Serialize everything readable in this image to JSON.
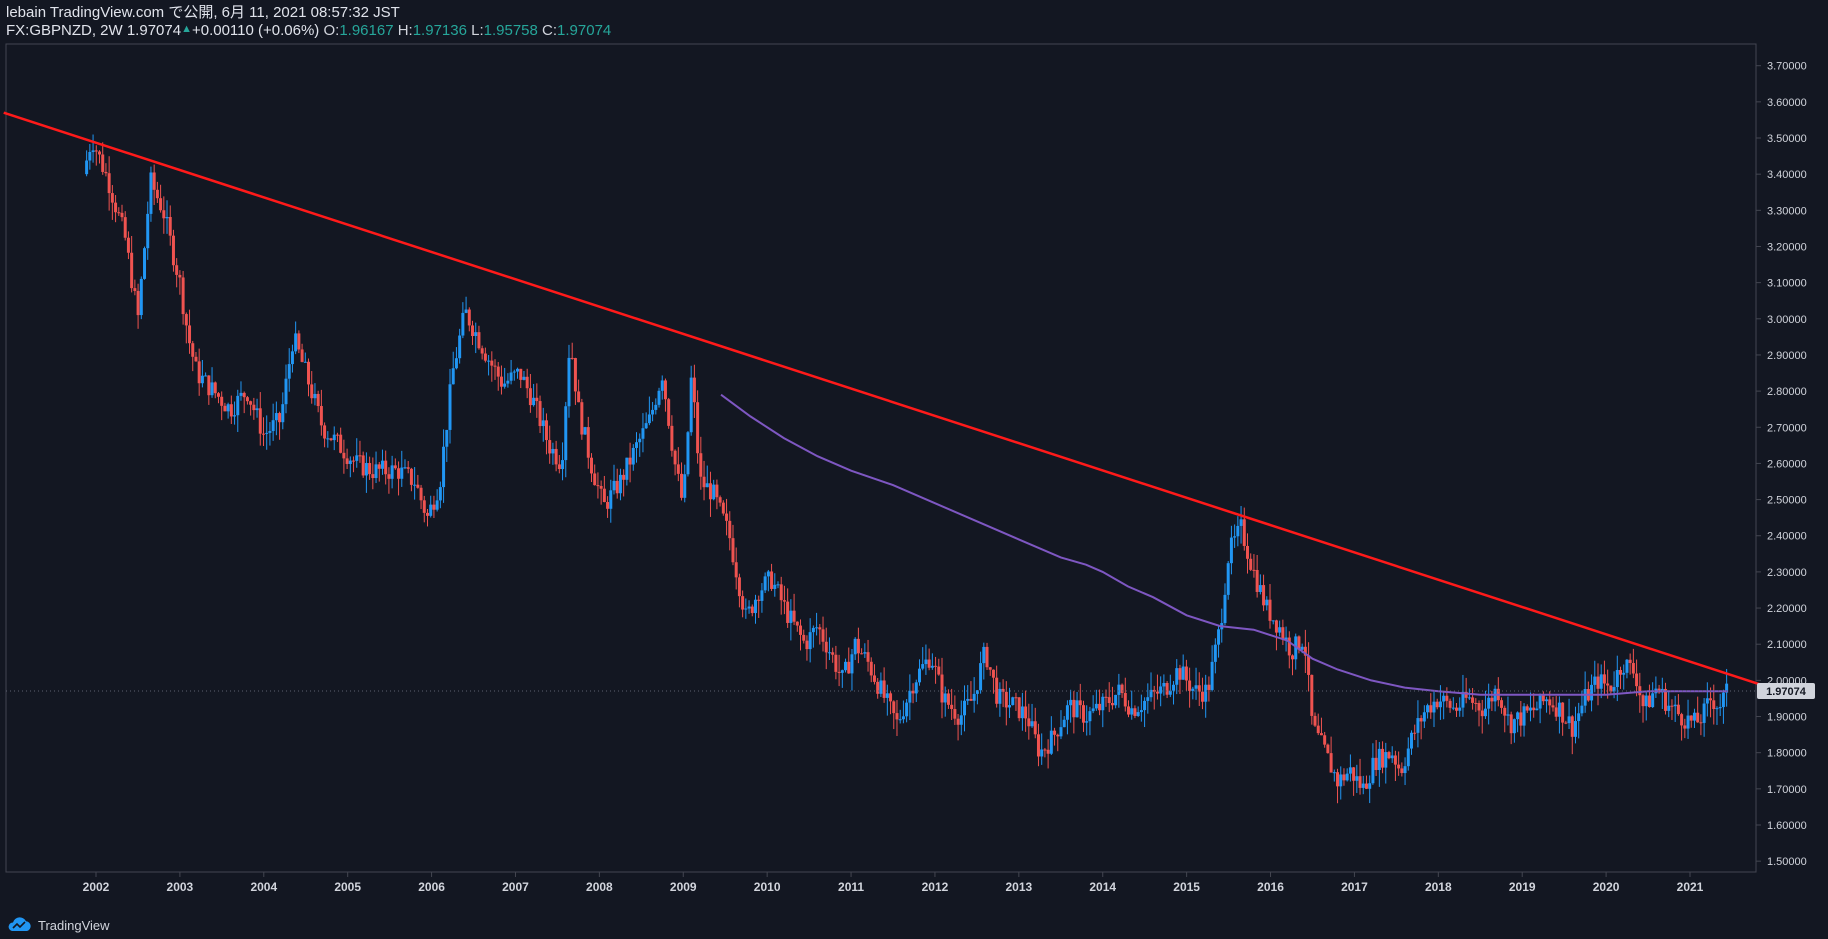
{
  "header": {
    "publish_line": "lebain TradingView.com で公開, 6月 11, 2021 08:57:32 JST",
    "symbol_line": "FX:GBPNZD, 2W 1.97074",
    "change": "+0.00110 (+0.06%)",
    "o_label": "O:",
    "o_value": "1.96167",
    "h_label": "H:",
    "h_value": "1.97136",
    "l_label": "L:",
    "l_value": "1.95758",
    "c_label": "C:",
    "c_value": "1.97074"
  },
  "footer": {
    "brand": "TradingView",
    "icon": "tradingview-cloud-icon"
  },
  "colors": {
    "background": "#131722",
    "up_candle": "#2196f3",
    "down_candle": "#ef5350",
    "trendline": "#ff1a1a",
    "moving_average": "#7e57c2",
    "price_label_bg": "#d1d4dc",
    "axis_text": "#d1d4dc"
  },
  "chart_data": {
    "type": "candlestick",
    "symbol": "FX:GBPNZD",
    "interval": "2W",
    "x_ticks": [
      "2002",
      "2003",
      "2004",
      "2005",
      "2006",
      "2007",
      "2008",
      "2009",
      "2010",
      "2011",
      "2012",
      "2013",
      "2014",
      "2015",
      "2016",
      "2017",
      "2018",
      "2019",
      "2020",
      "2021"
    ],
    "y_ticks": [
      "1.50000",
      "1.60000",
      "1.70000",
      "1.80000",
      "1.90000",
      "2.00000",
      "2.10000",
      "2.20000",
      "2.30000",
      "2.40000",
      "2.50000",
      "2.60000",
      "2.70000",
      "2.80000",
      "2.90000",
      "3.00000",
      "3.10000",
      "3.20000",
      "3.30000",
      "3.40000",
      "3.50000",
      "3.60000",
      "3.70000"
    ],
    "ylim": [
      1.47,
      3.76
    ],
    "last_price_label": "1.97074",
    "last_price": 1.97074,
    "price_path": [
      [
        2001.85,
        3.4
      ],
      [
        2001.95,
        3.5
      ],
      [
        2002.15,
        3.38
      ],
      [
        2002.35,
        3.22
      ],
      [
        2002.5,
        3.0
      ],
      [
        2002.65,
        3.38
      ],
      [
        2002.8,
        3.3
      ],
      [
        2003.0,
        3.1
      ],
      [
        2003.1,
        2.95
      ],
      [
        2003.2,
        2.85
      ],
      [
        2003.4,
        2.8
      ],
      [
        2003.6,
        2.75
      ],
      [
        2003.8,
        2.8
      ],
      [
        2004.0,
        2.68
      ],
      [
        2004.2,
        2.72
      ],
      [
        2004.35,
        2.95
      ],
      [
        2004.5,
        2.85
      ],
      [
        2004.7,
        2.7
      ],
      [
        2004.9,
        2.65
      ],
      [
        2005.1,
        2.6
      ],
      [
        2005.3,
        2.58
      ],
      [
        2005.6,
        2.58
      ],
      [
        2005.8,
        2.55
      ],
      [
        2005.95,
        2.45
      ],
      [
        2006.1,
        2.55
      ],
      [
        2006.25,
        2.85
      ],
      [
        2006.4,
        3.02
      ],
      [
        2006.55,
        2.95
      ],
      [
        2006.7,
        2.88
      ],
      [
        2006.85,
        2.82
      ],
      [
        2007.05,
        2.85
      ],
      [
        2007.2,
        2.78
      ],
      [
        2007.4,
        2.65
      ],
      [
        2007.55,
        2.6
      ],
      [
        2007.65,
        2.95
      ],
      [
        2007.75,
        2.75
      ],
      [
        2007.9,
        2.6
      ],
      [
        2008.05,
        2.48
      ],
      [
        2008.25,
        2.55
      ],
      [
        2008.45,
        2.65
      ],
      [
        2008.6,
        2.72
      ],
      [
        2008.75,
        2.85
      ],
      [
        2008.9,
        2.6
      ],
      [
        2009.0,
        2.48
      ],
      [
        2009.1,
        2.85
      ],
      [
        2009.2,
        2.55
      ],
      [
        2009.35,
        2.52
      ],
      [
        2009.55,
        2.4
      ],
      [
        2009.75,
        2.17
      ],
      [
        2009.9,
        2.25
      ],
      [
        2010.05,
        2.28
      ],
      [
        2010.25,
        2.18
      ],
      [
        2010.45,
        2.1
      ],
      [
        2010.6,
        2.15
      ],
      [
        2010.75,
        2.08
      ],
      [
        2010.9,
        2.0
      ],
      [
        2011.05,
        2.1
      ],
      [
        2011.2,
        2.05
      ],
      [
        2011.4,
        1.95
      ],
      [
        2011.55,
        1.88
      ],
      [
        2011.75,
        2.0
      ],
      [
        2011.95,
        2.07
      ],
      [
        2012.1,
        1.95
      ],
      [
        2012.3,
        1.9
      ],
      [
        2012.45,
        1.95
      ],
      [
        2012.6,
        2.08
      ],
      [
        2012.75,
        1.95
      ],
      [
        2012.95,
        1.93
      ],
      [
        2013.1,
        1.9
      ],
      [
        2013.25,
        1.8
      ],
      [
        2013.4,
        1.84
      ],
      [
        2013.6,
        1.93
      ],
      [
        2013.8,
        1.9
      ],
      [
        2014.0,
        1.93
      ],
      [
        2014.2,
        1.97
      ],
      [
        2014.35,
        1.92
      ],
      [
        2014.55,
        1.95
      ],
      [
        2014.75,
        1.98
      ],
      [
        2014.9,
        2.03
      ],
      [
        2015.1,
        1.97
      ],
      [
        2015.25,
        1.97
      ],
      [
        2015.4,
        2.15
      ],
      [
        2015.5,
        2.35
      ],
      [
        2015.65,
        2.42
      ],
      [
        2015.8,
        2.3
      ],
      [
        2015.95,
        2.2
      ],
      [
        2016.1,
        2.15
      ],
      [
        2016.25,
        2.08
      ],
      [
        2016.4,
        2.12
      ],
      [
        2016.5,
        1.87
      ],
      [
        2016.65,
        1.8
      ],
      [
        2016.8,
        1.72
      ],
      [
        2016.95,
        1.75
      ],
      [
        2017.1,
        1.7
      ],
      [
        2017.25,
        1.78
      ],
      [
        2017.45,
        1.8
      ],
      [
        2017.55,
        1.75
      ],
      [
        2017.7,
        1.85
      ],
      [
        2017.85,
        1.92
      ],
      [
        2018.0,
        1.95
      ],
      [
        2018.2,
        1.92
      ],
      [
        2018.35,
        1.95
      ],
      [
        2018.55,
        1.92
      ],
      [
        2018.7,
        1.98
      ],
      [
        2018.85,
        1.88
      ],
      [
        2019.0,
        1.9
      ],
      [
        2019.15,
        1.92
      ],
      [
        2019.3,
        1.95
      ],
      [
        2019.45,
        1.92
      ],
      [
        2019.6,
        1.87
      ],
      [
        2019.75,
        1.95
      ],
      [
        2019.9,
        2.0
      ],
      [
        2020.05,
        1.98
      ],
      [
        2020.2,
        2.05
      ],
      [
        2020.35,
        2.02
      ],
      [
        2020.45,
        1.92
      ],
      [
        2020.6,
        1.98
      ],
      [
        2020.75,
        1.93
      ],
      [
        2020.9,
        1.9
      ],
      [
        2021.05,
        1.88
      ],
      [
        2021.15,
        1.9
      ],
      [
        2021.25,
        1.95
      ],
      [
        2021.35,
        1.93
      ],
      [
        2021.45,
        1.97
      ]
    ],
    "trendline": {
      "color": "red",
      "start": [
        2000.9,
        3.57
      ],
      "end": [
        2021.95,
        1.98
      ]
    },
    "moving_average": {
      "color": "purple",
      "points": [
        [
          2009.45,
          2.79
        ],
        [
          2009.8,
          2.73
        ],
        [
          2010.2,
          2.67
        ],
        [
          2010.6,
          2.62
        ],
        [
          2011.0,
          2.58
        ],
        [
          2011.5,
          2.54
        ],
        [
          2012.0,
          2.49
        ],
        [
          2012.5,
          2.44
        ],
        [
          2013.0,
          2.39
        ],
        [
          2013.5,
          2.34
        ],
        [
          2013.8,
          2.32
        ],
        [
          2014.0,
          2.3
        ],
        [
          2014.3,
          2.26
        ],
        [
          2014.6,
          2.23
        ],
        [
          2015.0,
          2.18
        ],
        [
          2015.4,
          2.15
        ],
        [
          2015.8,
          2.14
        ],
        [
          2016.2,
          2.11
        ],
        [
          2016.5,
          2.06
        ],
        [
          2016.8,
          2.03
        ],
        [
          2017.2,
          2.0
        ],
        [
          2017.6,
          1.98
        ],
        [
          2018.0,
          1.97
        ],
        [
          2018.5,
          1.96
        ],
        [
          2019.0,
          1.96
        ],
        [
          2019.5,
          1.96
        ],
        [
          2020.0,
          1.96
        ],
        [
          2020.5,
          1.97
        ],
        [
          2021.0,
          1.97
        ],
        [
          2021.45,
          1.97
        ]
      ]
    }
  }
}
